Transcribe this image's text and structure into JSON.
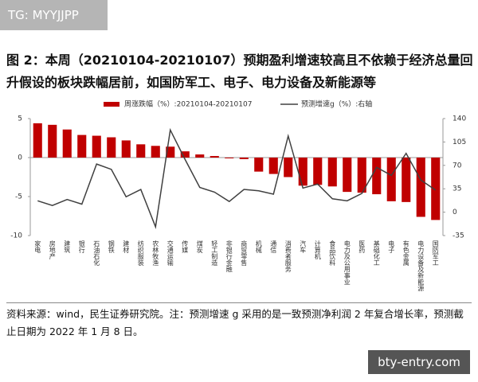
{
  "watermark_top": "TG: MYYJJPP",
  "figure_title": "图 2：本周（20210104-20210107）预期盈利增速较高且不依赖于经济总量回升假设的板块跌幅居前，如国防军工、电子、电力设备及新能源等",
  "chart_data": {
    "type": "combo",
    "categories": [
      "家电",
      "房地产",
      "建筑",
      "银行",
      "石油石化",
      "钢铁",
      "建材",
      "纺织服装",
      "农林牧渔",
      "交通运输",
      "传媒",
      "煤炭",
      "轻工制造",
      "非银行金融",
      "商贸零售",
      "机械",
      "通信",
      "消费者服务",
      "汽车",
      "计算机",
      "食品饮料",
      "电力及公用事业",
      "医药",
      "基础化工",
      "电子",
      "有色金属",
      "电力设备及新能源",
      "国防军工"
    ],
    "series": [
      {
        "name": "周涨跌幅（%）:20210104-20210107",
        "type": "bar",
        "color": "#c00000",
        "values": [
          4.4,
          4.2,
          3.6,
          2.9,
          2.8,
          2.6,
          2.2,
          1.7,
          1.5,
          1.4,
          0.8,
          0.4,
          0.2,
          -0.1,
          -0.2,
          -1.8,
          -2.1,
          -2.5,
          -3.6,
          -3.5,
          -3.7,
          -4.4,
          -4.5,
          -4.7,
          -5.6,
          -5.7,
          -7.6,
          -8.0
        ]
      },
      {
        "name": "预测增速g（%）:右轴",
        "type": "line",
        "color": "#404040",
        "axis": "y2",
        "values": [
          17,
          10,
          19,
          12,
          72,
          64,
          23,
          34,
          -22,
          123,
          79,
          37,
          30,
          16,
          34,
          32,
          27,
          114,
          36,
          42,
          20,
          17,
          28,
          67,
          55,
          88,
          48,
          33
        ]
      }
    ],
    "ylim": [
      -10,
      5
    ],
    "yticks": [
      5,
      0,
      -5,
      -10
    ],
    "y2lim": [
      -35,
      140
    ],
    "y2ticks": [
      140,
      105,
      70,
      35,
      0,
      -35
    ],
    "legend": "top"
  },
  "source_note": "资料来源：wind，民生证券研究院。注：预测增速 g 采用的是一致预测净利润 2 年复合增长率，预测截止日期为 2022 年 1 月 8 日。",
  "watermark_bottom": "bty-entry.com"
}
